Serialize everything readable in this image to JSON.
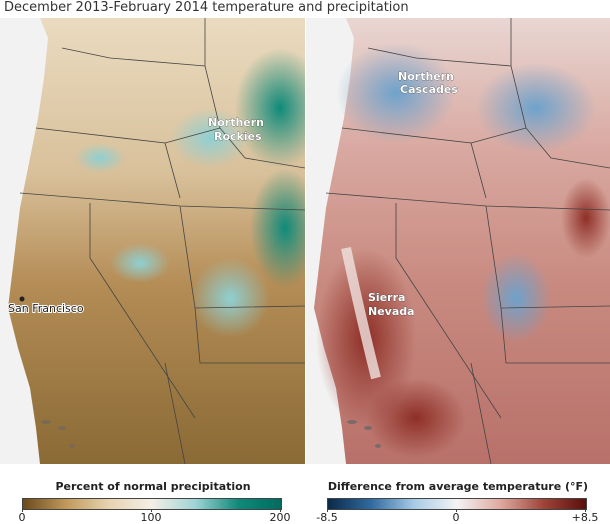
{
  "title": "December 2013-February 2014 temperature and precipitation",
  "precip_map": {
    "labels": [
      {
        "text": "Northern",
        "id": "northern-rockies-1"
      },
      {
        "text": "Rockies",
        "id": "northern-rockies-2"
      }
    ],
    "city": "San Francisco",
    "legend": {
      "title": "Percent of normal precipitation",
      "ticks": [
        "0",
        "100",
        "200"
      ],
      "colors": [
        "#6b4a1c",
        "#c19a5a",
        "#e7d3b0",
        "#f4efe6",
        "#9fd4d7",
        "#0f8a7a",
        "#006b5e"
      ]
    }
  },
  "temp_map": {
    "labels": [
      {
        "text": "Northern",
        "id": "northern-cascades-1"
      },
      {
        "text": "Cascades",
        "id": "northern-cascades-2"
      },
      {
        "text": "Sierra",
        "id": "sierra-nevada-1"
      },
      {
        "text": "Nevada",
        "id": "sierra-nevada-2"
      }
    ],
    "legend": {
      "title": "Difference from average temperature (°F)",
      "ticks": [
        "-8.5",
        "0",
        "+8.5"
      ],
      "colors": [
        "#0b2a4a",
        "#2f6aa0",
        "#a8cbe6",
        "#f3f3f3",
        "#e0aaa0",
        "#a0443a",
        "#5a0f0c"
      ]
    }
  }
}
